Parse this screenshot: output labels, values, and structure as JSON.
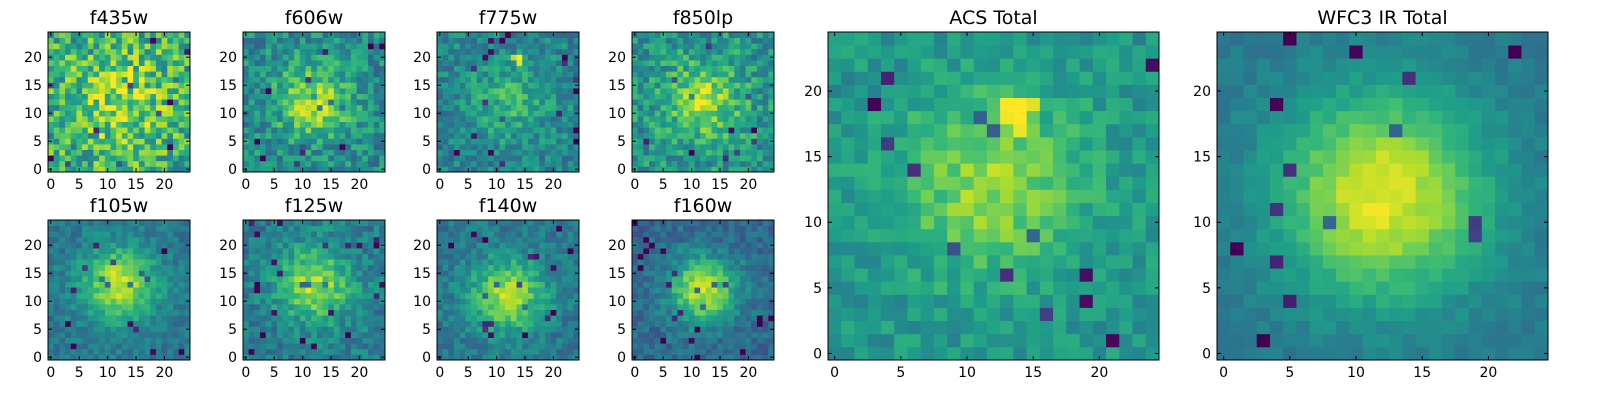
{
  "chart_data": [
    {
      "type": "heatmap",
      "title": "f435w",
      "xlim": [
        0,
        25
      ],
      "ylim": [
        0,
        25
      ],
      "xticks": [
        "0",
        "5",
        "10",
        "15",
        "20"
      ],
      "yticks": [
        "0",
        "5",
        "10",
        "15",
        "20"
      ],
      "colormap": "viridis",
      "grid": false
    },
    {
      "type": "heatmap",
      "title": "f606w",
      "xlim": [
        0,
        25
      ],
      "ylim": [
        0,
        25
      ],
      "xticks": [
        "0",
        "5",
        "10",
        "15",
        "20"
      ],
      "yticks": [
        "0",
        "5",
        "10",
        "15",
        "20"
      ],
      "colormap": "viridis",
      "grid": false
    },
    {
      "type": "heatmap",
      "title": "f775w",
      "xlim": [
        0,
        25
      ],
      "ylim": [
        0,
        25
      ],
      "xticks": [
        "0",
        "5",
        "10",
        "15",
        "20"
      ],
      "yticks": [
        "0",
        "5",
        "10",
        "15",
        "20"
      ],
      "colormap": "viridis",
      "grid": false
    },
    {
      "type": "heatmap",
      "title": "f850lp",
      "xlim": [
        0,
        25
      ],
      "ylim": [
        0,
        25
      ],
      "xticks": [
        "0",
        "5",
        "10",
        "15",
        "20"
      ],
      "yticks": [
        "0",
        "5",
        "10",
        "15",
        "20"
      ],
      "colormap": "viridis",
      "grid": false
    },
    {
      "type": "heatmap",
      "title": "f105w",
      "xlim": [
        0,
        25
      ],
      "ylim": [
        0,
        25
      ],
      "xticks": [
        "0",
        "5",
        "10",
        "15",
        "20"
      ],
      "yticks": [
        "0",
        "5",
        "10",
        "15",
        "20"
      ],
      "colormap": "viridis",
      "grid": false
    },
    {
      "type": "heatmap",
      "title": "f125w",
      "xlim": [
        0,
        25
      ],
      "ylim": [
        0,
        25
      ],
      "xticks": [
        "0",
        "5",
        "10",
        "15",
        "20"
      ],
      "yticks": [
        "0",
        "5",
        "10",
        "15",
        "20"
      ],
      "colormap": "viridis",
      "grid": false
    },
    {
      "type": "heatmap",
      "title": "f140w",
      "xlim": [
        0,
        25
      ],
      "ylim": [
        0,
        25
      ],
      "xticks": [
        "0",
        "5",
        "10",
        "15",
        "20"
      ],
      "yticks": [
        "0",
        "5",
        "10",
        "15",
        "20"
      ],
      "colormap": "viridis",
      "grid": false
    },
    {
      "type": "heatmap",
      "title": "f160w",
      "xlim": [
        0,
        25
      ],
      "ylim": [
        0,
        25
      ],
      "xticks": [
        "0",
        "5",
        "10",
        "15",
        "20"
      ],
      "yticks": [
        "0",
        "5",
        "10",
        "15",
        "20"
      ],
      "colormap": "viridis",
      "grid": false
    },
    {
      "type": "heatmap",
      "title": "ACS Total",
      "xlim": [
        0,
        25
      ],
      "ylim": [
        0,
        25
      ],
      "xticks": [
        "0",
        "5",
        "10",
        "15",
        "20"
      ],
      "yticks": [
        "0",
        "5",
        "10",
        "15",
        "20"
      ],
      "colormap": "viridis",
      "grid": false
    },
    {
      "type": "heatmap",
      "title": "WFC3 IR Total",
      "xlim": [
        0,
        25
      ],
      "ylim": [
        0,
        25
      ],
      "xticks": [
        "0",
        "5",
        "10",
        "15",
        "20"
      ],
      "yticks": [
        "0",
        "5",
        "10",
        "15",
        "20"
      ],
      "colormap": "viridis",
      "grid": false
    }
  ]
}
